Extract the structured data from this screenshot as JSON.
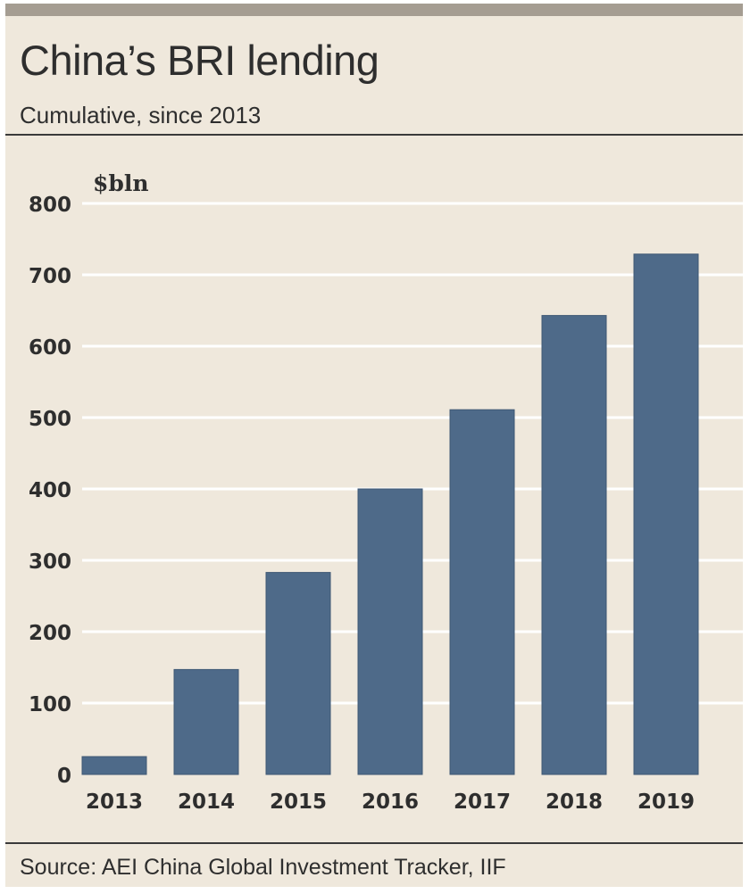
{
  "header": {
    "title": "China’s BRI lending",
    "subtitle": "Cumulative, since 2013"
  },
  "footer": {
    "source": "Source: AEI China Global Investment Tracker, IIF"
  },
  "colors": {
    "bar": "#4e6a89",
    "bar_edge": "#3f5874",
    "gridline": "#ffffff",
    "background": "#efe8dc"
  },
  "chart_data": {
    "type": "bar",
    "title": "China’s BRI lending",
    "subtitle": "Cumulative, since 2013",
    "ylabel": "$bln",
    "xlabel": "",
    "categories": [
      "2013",
      "2014",
      "2015",
      "2016",
      "2017",
      "2018",
      "2019"
    ],
    "values": [
      25,
      147,
      283,
      400,
      511,
      643,
      729
    ],
    "ylim": [
      0,
      800
    ],
    "yticks": [
      0,
      100,
      200,
      300,
      400,
      500,
      600,
      700,
      800
    ],
    "grid": true,
    "legend": "none"
  }
}
